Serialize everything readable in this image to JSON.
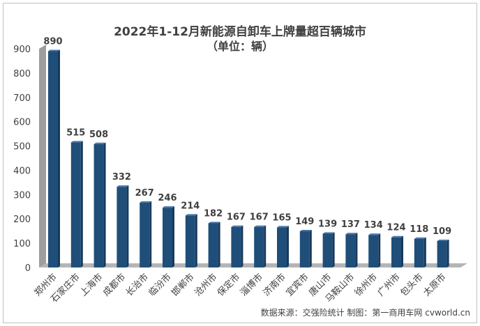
{
  "chart_data": {
    "type": "bar",
    "title": "2022年1-12月新能源自卸车上牌量超百辆城市",
    "subtitle": "（单位：辆）",
    "categories": [
      "郑州市",
      "石家庄市",
      "上海市",
      "成都市",
      "长治市",
      "临汾市",
      "邯郸市",
      "沧州市",
      "保定市",
      "淄博市",
      "济南市",
      "宜宾市",
      "唐山市",
      "马鞍山市",
      "徐州市",
      "广州市",
      "包头市",
      "太原市"
    ],
    "values": [
      890,
      515,
      508,
      332,
      267,
      246,
      214,
      182,
      167,
      167,
      165,
      149,
      139,
      137,
      134,
      124,
      118,
      109
    ],
    "data_labels": [
      "890",
      "515",
      "508",
      "332",
      "267",
      "246",
      "214",
      "182",
      "167",
      "167",
      "165",
      "149",
      "139",
      "137",
      "134",
      "124",
      "118",
      "109"
    ],
    "ylim": [
      0,
      900
    ],
    "yticks": [
      "0",
      "100",
      "200",
      "300",
      "400",
      "500",
      "600",
      "700",
      "800",
      "900"
    ],
    "grid": false,
    "legend": "none",
    "source": "数据来源：交强险统计  制图：第一商用车网 cvworld.cn",
    "colors": {
      "bar_front": "#1f4e79",
      "bar_side": "#163a5c",
      "bar_top": "#4a75a8",
      "wall": "#9e9e9e",
      "floor": "#b5b5b5",
      "text": "#404040"
    }
  }
}
